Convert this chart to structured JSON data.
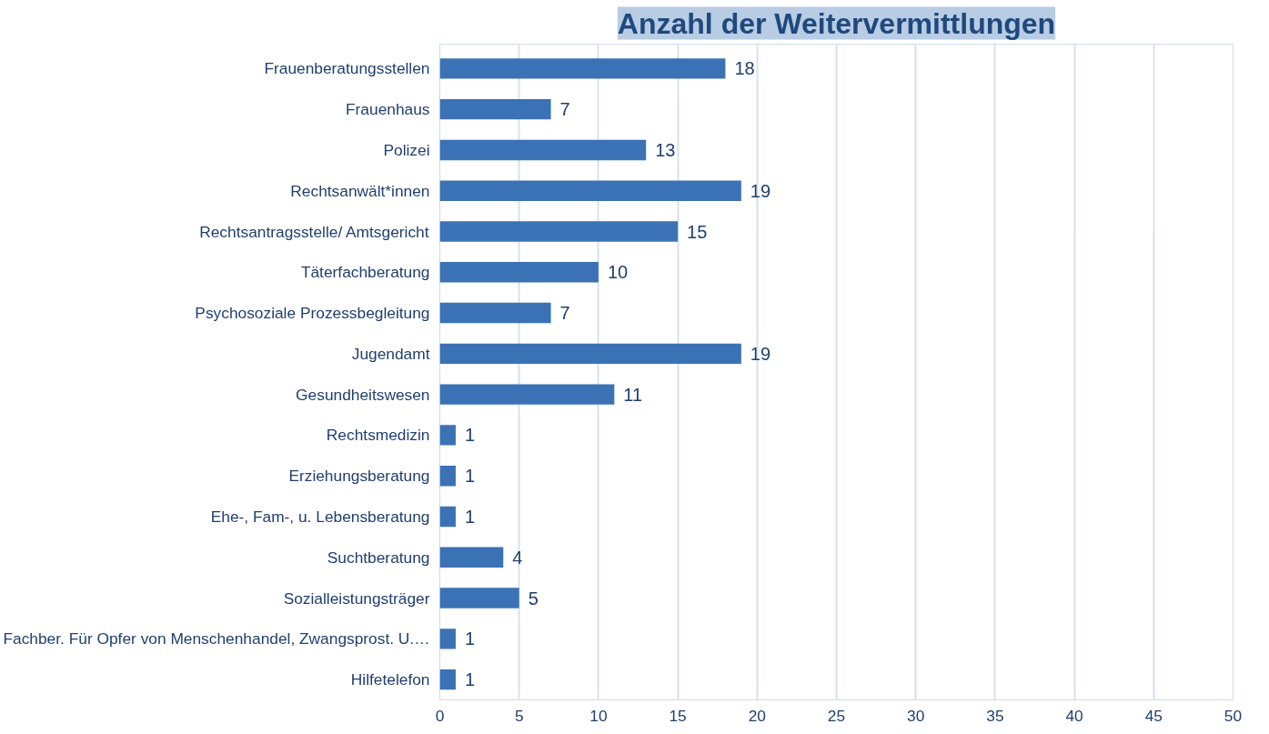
{
  "chart_data": {
    "type": "bar",
    "orientation": "horizontal",
    "title": "Anzahl der Weitervermittlungen",
    "categories": [
      "Frauenberatungsstellen",
      "Frauenhaus",
      "Polizei",
      "Rechtsanwält*innen",
      "Rechtsantragsstelle/ Amtsgericht",
      "Täterfachberatung",
      "Psychosoziale Prozessbegleitung",
      "Jugendamt",
      "Gesundheitswesen",
      "Rechtsmedizin",
      "Erziehungsberatung",
      "Ehe-, Fam-, u. Lebensberatung",
      "Suchtberatung",
      "Sozialleistungsträger",
      "Fachber. Für Opfer von Menschenhandel, Zwangsprost. U.…",
      "Hilfetelefon"
    ],
    "values": [
      18,
      7,
      13,
      19,
      15,
      10,
      7,
      19,
      11,
      1,
      1,
      1,
      4,
      5,
      1,
      1
    ],
    "color": "#3b72b5",
    "xlim": [
      0,
      50
    ],
    "xticks": [
      0,
      5,
      10,
      15,
      20,
      25,
      30,
      35,
      40,
      45,
      50
    ],
    "grid": "x",
    "data_labels": true
  }
}
